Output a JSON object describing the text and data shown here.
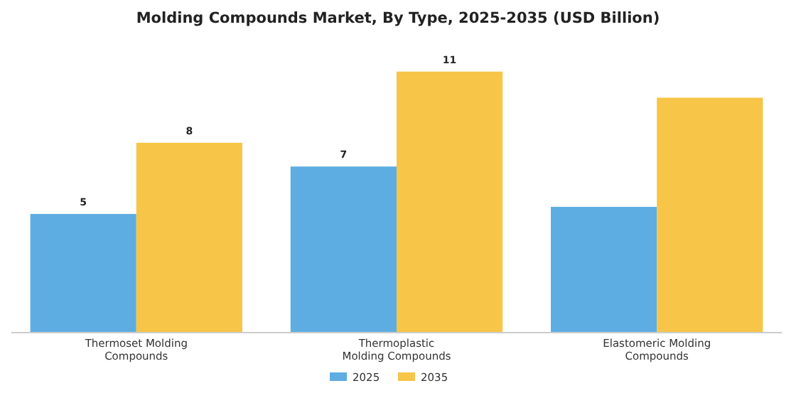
{
  "chart_data": {
    "type": "bar",
    "title": "Molding Compounds Market, By Type, 2025-2035 (USD Billion)",
    "categories": [
      "Thermoset Molding Compounds",
      "Thermoplastic Molding Compounds",
      "Elastomeric Molding Compounds"
    ],
    "series": [
      {
        "name": "2025",
        "color": "#5dade2",
        "values": [
          5,
          7,
          5.3
        ],
        "value_labels": [
          "5",
          "7",
          null
        ]
      },
      {
        "name": "2035",
        "color": "#f7c548",
        "values": [
          8,
          11,
          9.9
        ],
        "value_labels": [
          "8",
          "11",
          null
        ]
      }
    ],
    "legend": "bottom",
    "grid": false
  }
}
